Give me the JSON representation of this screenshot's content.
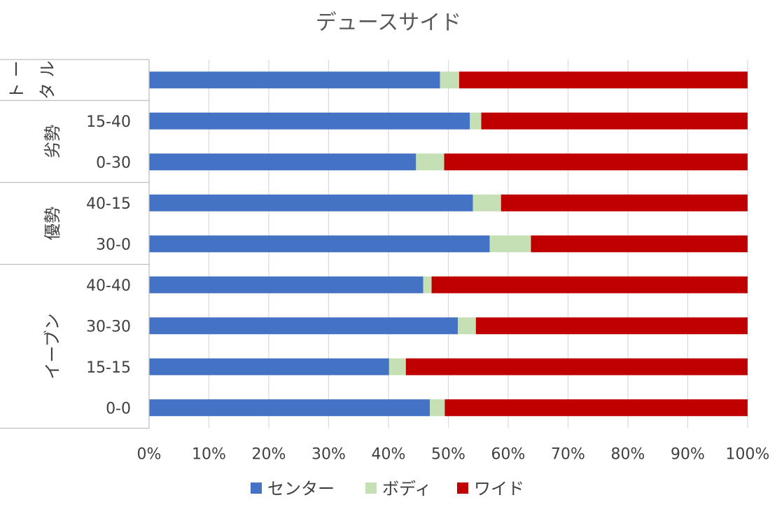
{
  "chart_data": {
    "type": "bar",
    "orientation": "horizontal",
    "stacked": "percent",
    "title": "デュースサイド",
    "categories": [
      {
        "group": "トータル",
        "label": ""
      },
      {
        "group": "劣勢",
        "label": "15-40"
      },
      {
        "group": "劣勢",
        "label": "0-30"
      },
      {
        "group": "優勢",
        "label": "40-15"
      },
      {
        "group": "優勢",
        "label": "30-0"
      },
      {
        "group": "イーブン",
        "label": "40-40"
      },
      {
        "group": "イーブン",
        "label": "30-30"
      },
      {
        "group": "イーブン",
        "label": "15-15"
      },
      {
        "group": "イーブン",
        "label": "0-0"
      }
    ],
    "groups": [
      {
        "name": "トータル",
        "lines": [
          "ト ー",
          "タ ル"
        ]
      },
      {
        "name": "劣勢",
        "lines": [
          "劣勢"
        ]
      },
      {
        "name": "優勢",
        "lines": [
          "優勢"
        ]
      },
      {
        "name": "イーブン",
        "lines": [
          "イーブン"
        ]
      }
    ],
    "series": [
      {
        "name": "センター",
        "color": "#4472c4",
        "values": [
          48.6,
          53.6,
          44.6,
          54.1,
          56.9,
          45.8,
          51.6,
          40.1,
          46.9
        ]
      },
      {
        "name": "ボディ",
        "color": "#c5e0b4",
        "values": [
          3.2,
          1.9,
          4.7,
          4.7,
          6.9,
          1.4,
          3.0,
          2.8,
          2.5
        ]
      },
      {
        "name": "ワイド",
        "color": "#c00000",
        "values": [
          48.2,
          44.5,
          50.7,
          41.2,
          36.2,
          52.8,
          45.4,
          57.1,
          50.6
        ]
      }
    ],
    "xlim": [
      0,
      100
    ],
    "xticks": [
      "0%",
      "10%",
      "20%",
      "30%",
      "40%",
      "50%",
      "60%",
      "70%",
      "80%",
      "90%",
      "100%"
    ],
    "grid": true,
    "legend_position": "bottom"
  }
}
